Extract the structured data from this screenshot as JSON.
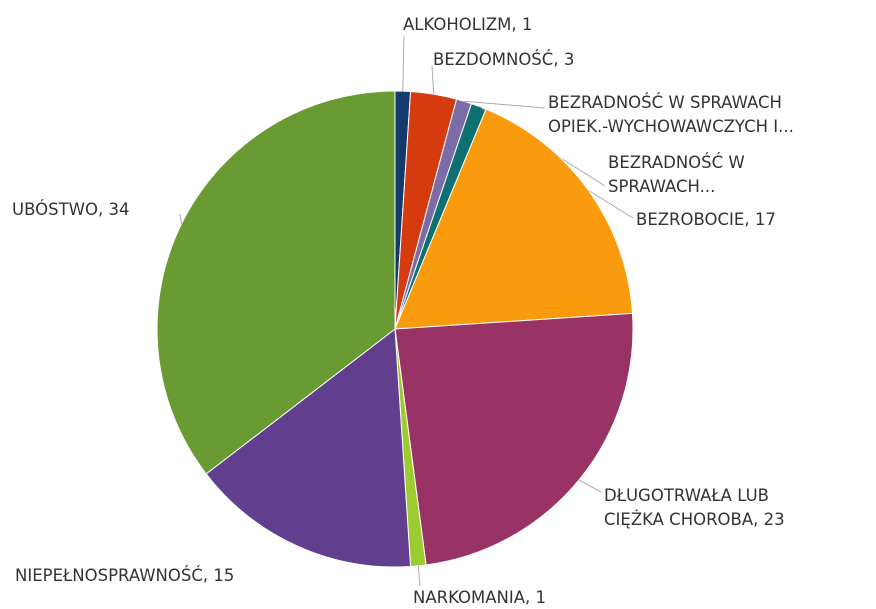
{
  "chart_data": {
    "type": "pie",
    "categories": [
      "ALKOHOLIZM",
      "BEZDOMNOŚĆ",
      "BEZRADNOŚĆ W SPRAWACH OPIEK.-WYCHOWAWCZYCH I...",
      "BEZRADNOŚĆ W SPRAWACH...",
      "BEZROBOCIE",
      "DŁUGOTRWAŁA LUB CIĘŻKA CHOROBA",
      "NARKOMANIA",
      "NIEPEŁNOSPRAWNOŚĆ",
      "UBÓSTWO"
    ],
    "values": [
      1,
      3,
      1,
      1,
      17,
      23,
      1,
      15,
      34
    ],
    "colors": [
      "#123a6b",
      "#d63b0f",
      "#7b6ca8",
      "#0e7070",
      "#f99b0c",
      "#993265",
      "#9ccc2f",
      "#613f8e",
      "#6a9a32"
    ]
  }
}
